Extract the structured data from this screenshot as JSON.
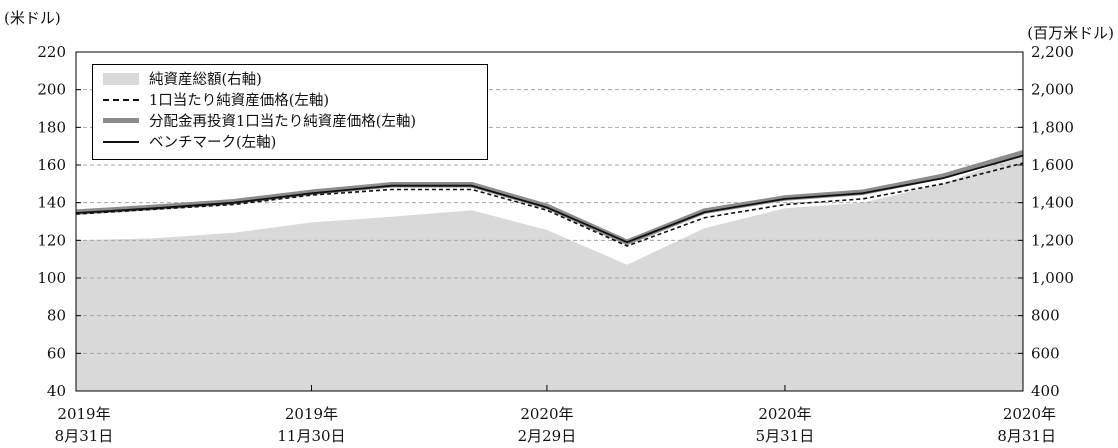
{
  "chart_data": {
    "type": "line",
    "left_unit": "(米ドル)",
    "right_unit": "(百万米ドル)",
    "x_ticks": [
      {
        "line1": "2019年",
        "line2": "8月31日"
      },
      {
        "line1": "2019年",
        "line2": "11月30日"
      },
      {
        "line1": "2020年",
        "line2": "2月29日"
      },
      {
        "line1": "2020年",
        "line2": "5月31日"
      },
      {
        "line1": "2020年",
        "line2": "8月31日"
      }
    ],
    "x": [
      "2019-08-31",
      "2019-09-30",
      "2019-10-31",
      "2019-11-30",
      "2019-12-31",
      "2020-01-31",
      "2020-02-29",
      "2020-03-31",
      "2020-04-30",
      "2020-05-31",
      "2020-06-30",
      "2020-07-31",
      "2020-08-31"
    ],
    "left_axis": {
      "min": 40,
      "max": 220,
      "ticks": [
        "40",
        "60",
        "80",
        "100",
        "120",
        "140",
        "160",
        "180",
        "200",
        "220"
      ]
    },
    "right_axis": {
      "min": 400,
      "max": 2200,
      "ticks": [
        "400",
        "600",
        "800",
        "1,000",
        "1,200",
        "1,400",
        "1,600",
        "1,800",
        "2,000",
        "2,200"
      ]
    },
    "grid": "horizontal dashed",
    "legend_position": "top-left",
    "series": [
      {
        "name": "純資産総額(右軸)",
        "axis": "right",
        "style": "area",
        "color": "#d9d9d9",
        "values": [
          1200,
          1210,
          1240,
          1295,
          1325,
          1360,
          1255,
          1070,
          1265,
          1370,
          1400,
          1500,
          1660
        ]
      },
      {
        "name": "1口当たり純資産価格(左軸)",
        "axis": "left",
        "style": "dashed",
        "color": "#111111",
        "values": [
          134,
          136.5,
          139,
          144,
          147,
          147,
          136,
          117,
          132,
          139,
          142,
          150,
          161
        ]
      },
      {
        "name": "分配金再投資1口当たり純資産価格(左軸)",
        "axis": "left",
        "style": "thick",
        "color": "#8c8c8c",
        "values": [
          135,
          137.5,
          140.5,
          145.5,
          149.5,
          149.5,
          138,
          119,
          135.5,
          142.5,
          145.5,
          154,
          166.5
        ]
      },
      {
        "name": "ベンチマーク(左軸)",
        "axis": "left",
        "style": "solid",
        "color": "#111111",
        "values": [
          134.5,
          137,
          140,
          145,
          149,
          149,
          137.5,
          119,
          135,
          142,
          145,
          153,
          165
        ]
      }
    ]
  }
}
